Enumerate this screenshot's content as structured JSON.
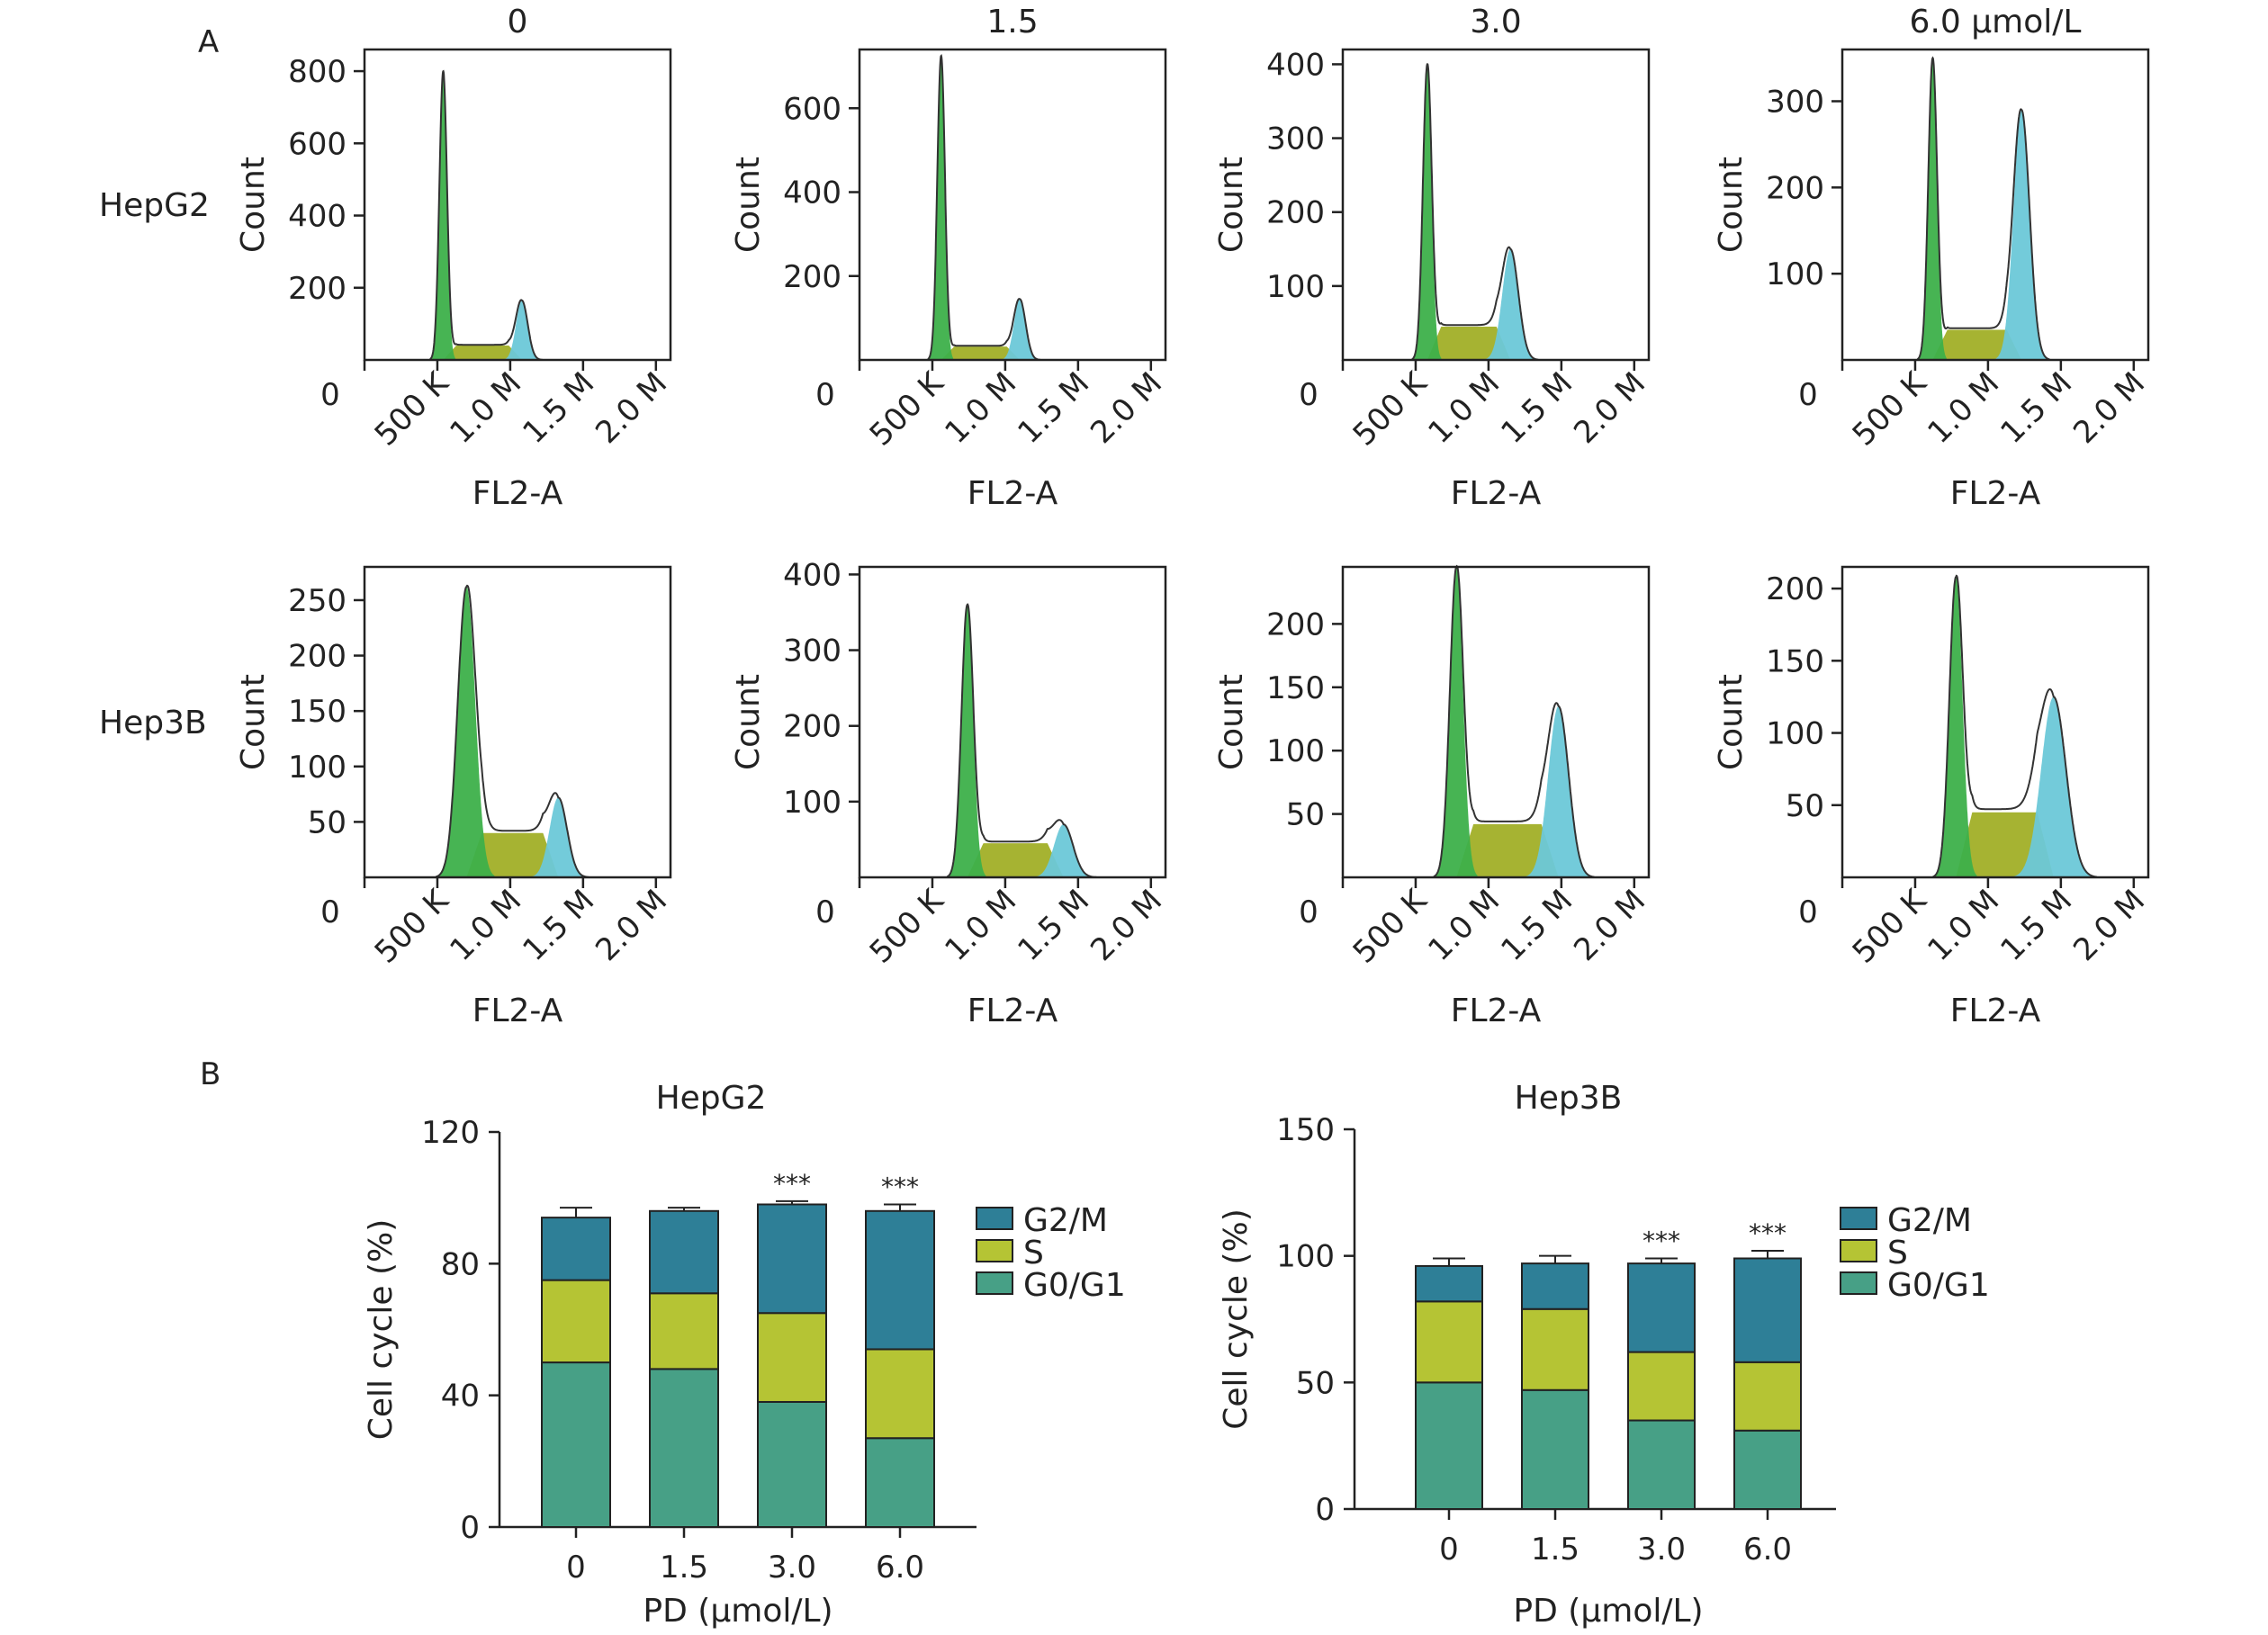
{
  "panels": {
    "a": "A",
    "b": "B"
  },
  "colors": {
    "g0g1": "#47a086",
    "s": "#b5c434",
    "g2m": "#2e7f97",
    "hist_g1": "#3db04a",
    "hist_s": "#a6b332",
    "hist_g2": "#6cc8d8",
    "outline": "#333333"
  },
  "chart_data": [
    {
      "type": "area",
      "panel": "A",
      "column_titles": [
        "0",
        "1.5",
        "3.0",
        "6.0 μmol/L"
      ],
      "row_labels": [
        "HepG2",
        "Hep3B"
      ],
      "xlabel": "FL2-A",
      "ylabel": "Count",
      "x_ticks": [
        "500 K",
        "1.0 M",
        "1.5 M",
        "2.0 M"
      ],
      "x_zero": "0",
      "xlim": [
        0,
        2100000
      ],
      "histograms": [
        {
          "row": 0,
          "col": 0,
          "ylim": [
            0,
            860
          ],
          "yticks": [
            200,
            400,
            600,
            800
          ],
          "g1_peak": [
            540000,
            800,
            26000
          ],
          "g2_peak": [
            1080000,
            165,
            40000
          ],
          "s_level": 40
        },
        {
          "row": 0,
          "col": 1,
          "ylim": [
            0,
            740
          ],
          "yticks": [
            200,
            400,
            600
          ],
          "g1_peak": [
            560000,
            725,
            26000
          ],
          "g2_peak": [
            1100000,
            145,
            40000
          ],
          "s_level": 32
        },
        {
          "row": 0,
          "col": 2,
          "ylim": [
            0,
            420
          ],
          "yticks": [
            100,
            200,
            300,
            400
          ],
          "g1_peak": [
            580000,
            400,
            30000
          ],
          "g2_peak": [
            1150000,
            150,
            55000
          ],
          "s_level": 45
        },
        {
          "row": 0,
          "col": 3,
          "ylim": [
            0,
            360
          ],
          "yticks": [
            100,
            200,
            300
          ],
          "g1_peak": [
            620000,
            350,
            30000
          ],
          "g2_peak": [
            1230000,
            290,
            55000
          ],
          "s_level": 35
        },
        {
          "row": 1,
          "col": 0,
          "ylim": [
            0,
            280
          ],
          "yticks": [
            50,
            100,
            150,
            200,
            250
          ],
          "g1_peak": [
            700000,
            262,
            60000
          ],
          "g2_peak": [
            1330000,
            72,
            60000
          ],
          "s_level": 40
        },
        {
          "row": 1,
          "col": 1,
          "ylim": [
            0,
            410
          ],
          "yticks": [
            100,
            200,
            300,
            400
          ],
          "g1_peak": [
            740000,
            360,
            40000
          ],
          "g2_peak": [
            1400000,
            70,
            65000
          ],
          "s_level": 45
        },
        {
          "row": 1,
          "col": 2,
          "ylim": [
            0,
            245
          ],
          "yticks": [
            50,
            100,
            150,
            200
          ],
          "g1_peak": [
            780000,
            245,
            45000
          ],
          "g2_peak": [
            1480000,
            135,
            70000
          ],
          "s_level": 42
        },
        {
          "row": 1,
          "col": 3,
          "ylim": [
            0,
            215
          ],
          "yticks": [
            50,
            100,
            150,
            200
          ],
          "g1_peak": [
            780000,
            208,
            45000
          ],
          "g2_peak": [
            1450000,
            125,
            85000
          ],
          "s_level": 45
        }
      ]
    },
    {
      "type": "bar",
      "stacked": true,
      "panel": "B",
      "title": "HepG2",
      "xlabel": "PD (μmol/L)",
      "ylabel": "Cell cycle (%)",
      "categories": [
        "0",
        "1.5",
        "3.0",
        "6.0"
      ],
      "ylim": [
        0,
        120
      ],
      "yticks": [
        0,
        40,
        80,
        120
      ],
      "series": [
        {
          "name": "G0/G1",
          "values": [
            50,
            48,
            38,
            27
          ],
          "errors": [
            2,
            3,
            2,
            1
          ]
        },
        {
          "name": "S",
          "values": [
            25,
            23,
            27,
            27
          ],
          "errors": [
            1,
            4,
            3,
            2
          ]
        },
        {
          "name": "G2/M",
          "values": [
            19,
            25,
            33,
            42
          ],
          "errors": [
            3,
            1,
            1,
            2
          ]
        }
      ],
      "significance": [
        "",
        "",
        "***",
        "***"
      ],
      "legend_order": [
        "G2/M",
        "S",
        "G0/G1"
      ]
    },
    {
      "type": "bar",
      "stacked": true,
      "panel": "B",
      "title": "Hep3B",
      "xlabel": "PD (μmol/L)",
      "ylabel": "Cell cycle (%)",
      "categories": [
        "0",
        "1.5",
        "3.0",
        "6.0"
      ],
      "ylim": [
        0,
        150
      ],
      "yticks": [
        0,
        50,
        100,
        150
      ],
      "series": [
        {
          "name": "G0/G1",
          "values": [
            50,
            47,
            35,
            31
          ],
          "errors": [
            3,
            1,
            1,
            1
          ]
        },
        {
          "name": "S",
          "values": [
            32,
            32,
            27,
            27
          ],
          "errors": [
            1,
            2,
            1,
            2
          ]
        },
        {
          "name": "G2/M",
          "values": [
            14,
            18,
            35,
            41
          ],
          "errors": [
            3,
            3,
            2,
            3
          ]
        }
      ],
      "significance": [
        "",
        "",
        "***",
        "***"
      ],
      "legend_order": [
        "G2/M",
        "S",
        "G0/G1"
      ]
    }
  ]
}
